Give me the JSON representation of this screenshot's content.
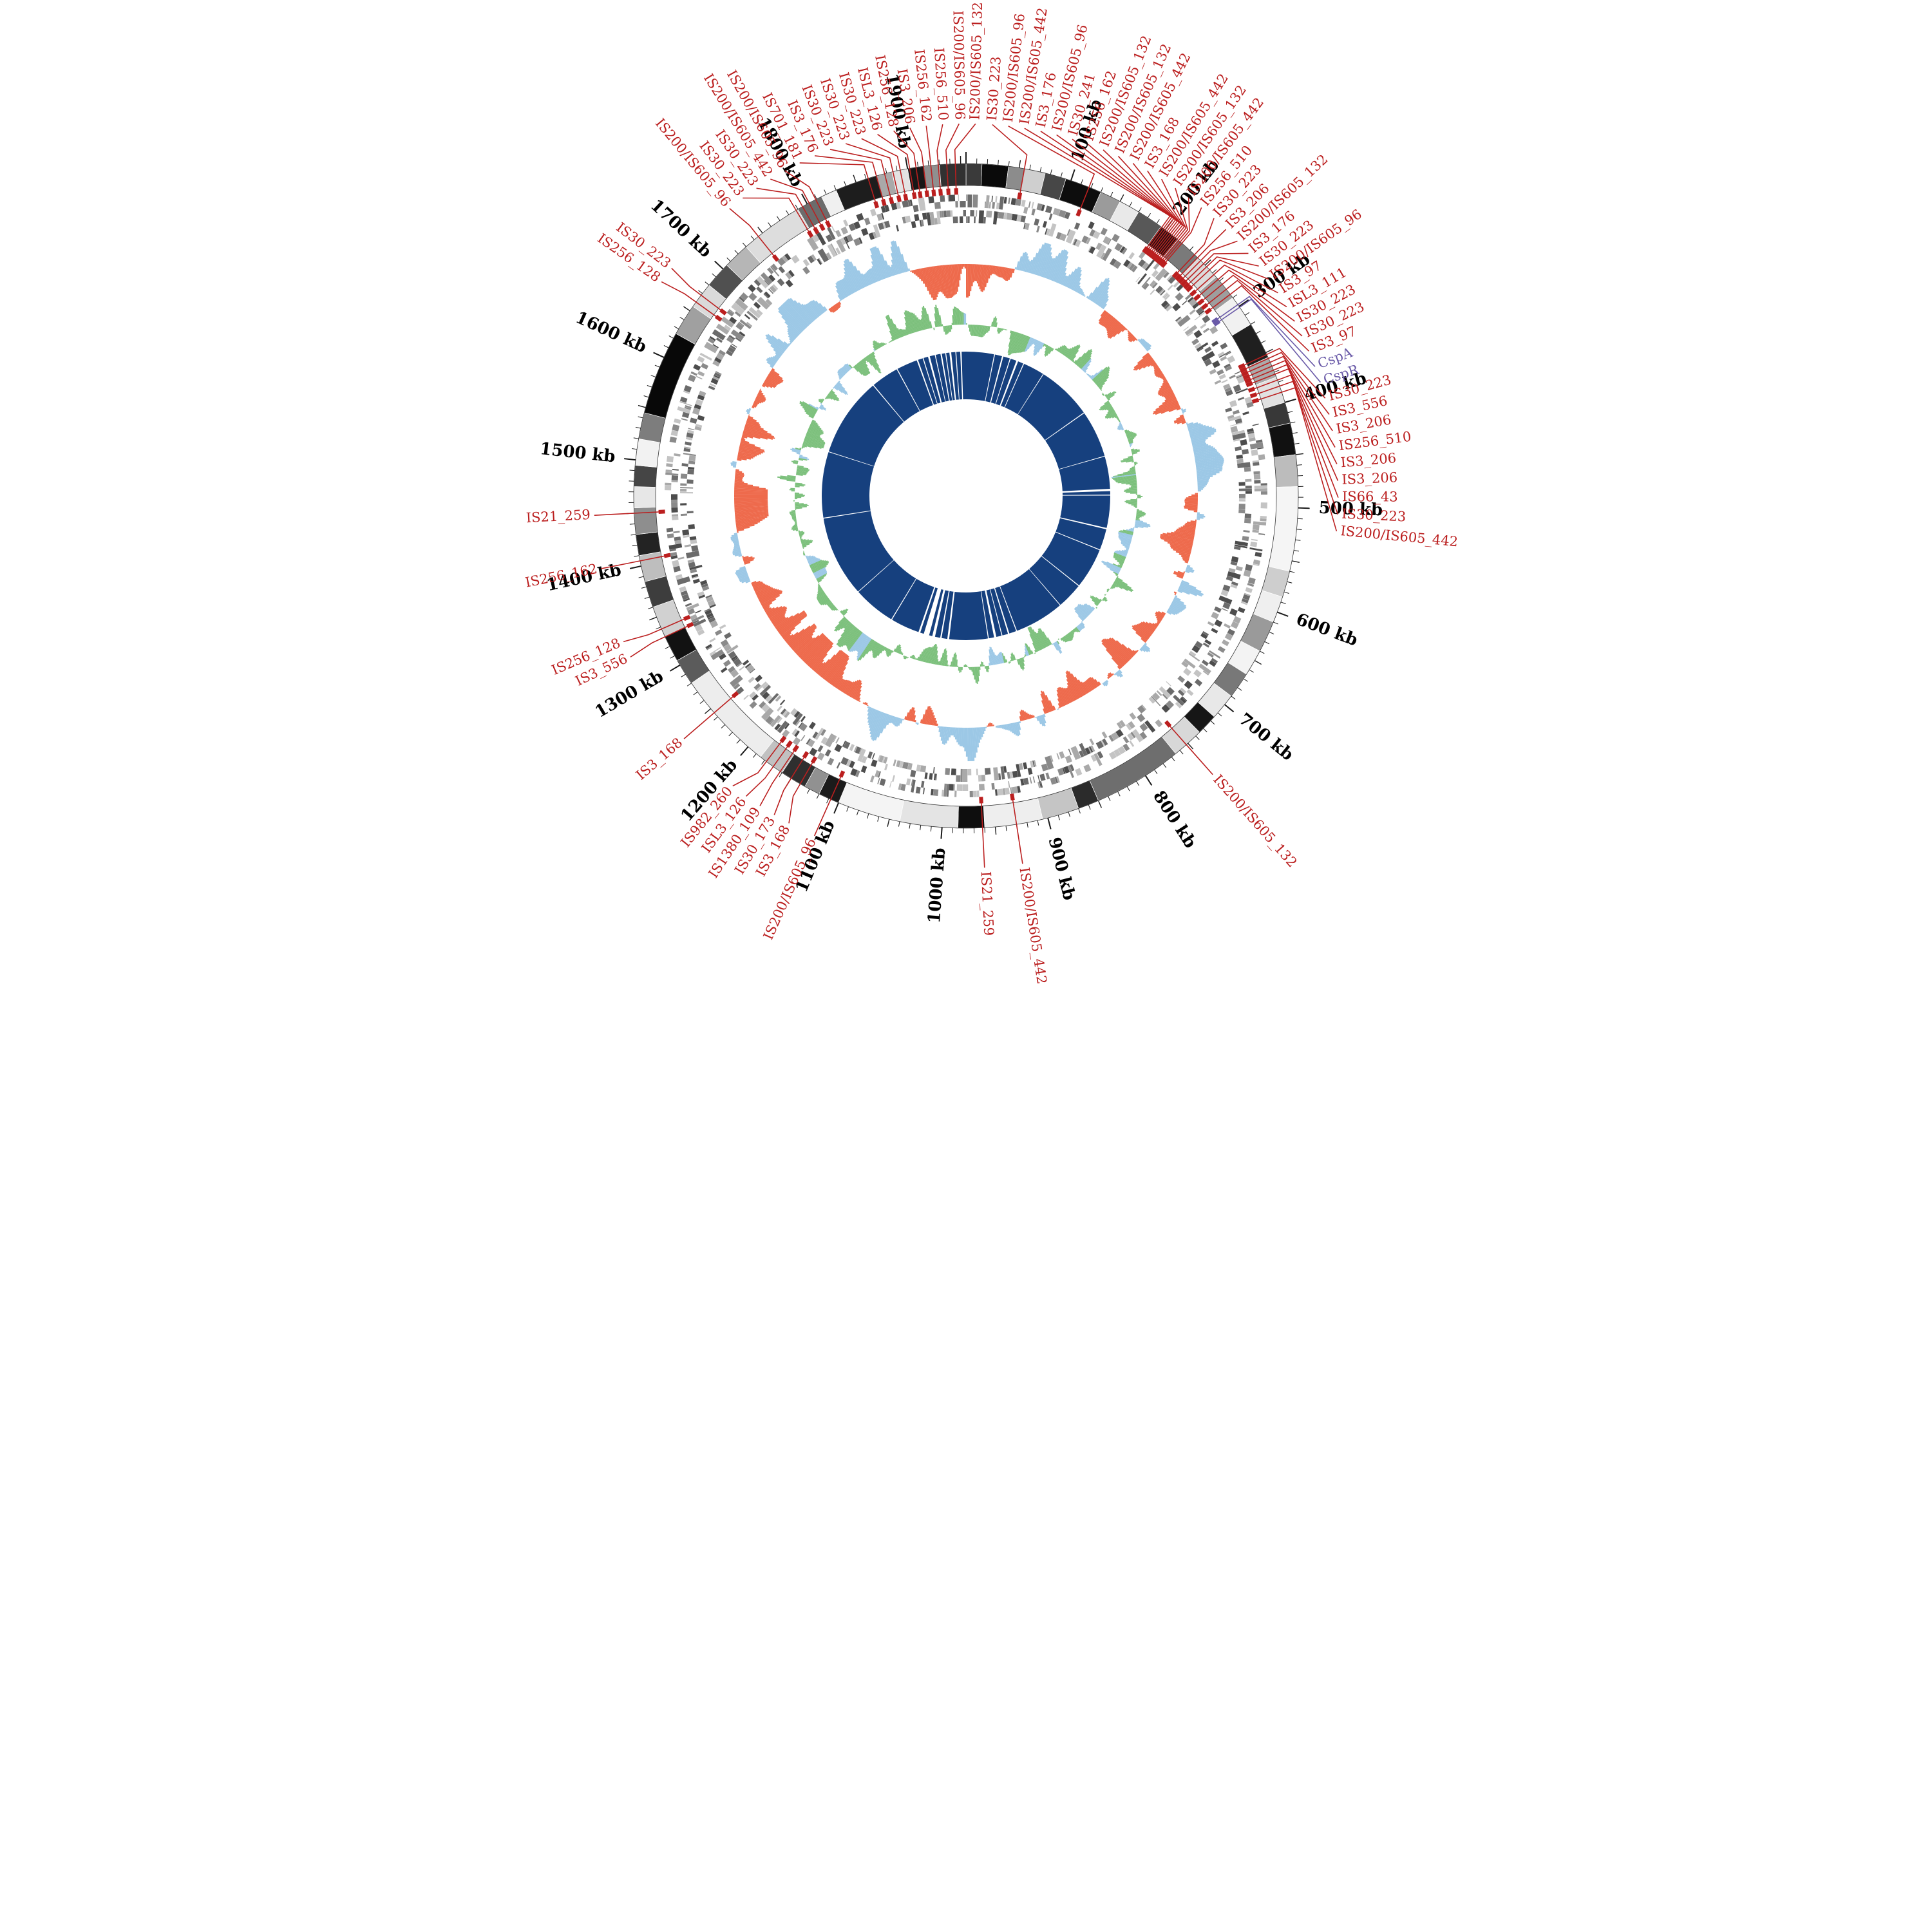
{
  "figure": {
    "background": "#ffffff",
    "description": "circular genome map with IS element annotations"
  },
  "chart_data": {
    "type": "circular-genome-map",
    "genome_length_kb": 1955,
    "scale": {
      "unit": "kb",
      "major_tick_kb": 100,
      "minor_tick_kb": 10,
      "tick_labels": [
        "100 kb",
        "200 kb",
        "300 kb",
        "400 kb",
        "500 kb",
        "600 kb",
        "700 kb",
        "800 kb",
        "900 kb",
        "1000 kb",
        "1100 kb",
        "1200 kb",
        "1300 kb",
        "1400 kb",
        "1500 kb",
        "1600 kb",
        "1700 kb",
        "1800 kb",
        "1900 kb"
      ]
    },
    "colors": {
      "is_label_red": "#bb1f1f",
      "gene_label_purple": "#6a5aa8",
      "navy_ring": "#16407e",
      "histogram_orange": "#ee6a4c",
      "histogram_blue": "#9cc8e6",
      "histogram_green": "#7cc07c",
      "tick_black": "#1a1a1a"
    },
    "tracks": [
      {
        "id": "scale_axis",
        "type": "axis",
        "r_out": 534
      },
      {
        "id": "grayscale_segments",
        "type": "karyotype",
        "r_in": 482,
        "r_out": 516
      },
      {
        "id": "red_position_marks",
        "type": "tick-marks",
        "r_in": 468,
        "r_out": 478
      },
      {
        "id": "gene_blocks_outer",
        "type": "blocks",
        "r_in": 448,
        "r_out": 468
      },
      {
        "id": "gene_blocks_inner",
        "type": "blocks",
        "r_in": 424,
        "r_out": 444
      },
      {
        "id": "orange_blue_histogram",
        "type": "radial-histogram",
        "baseline_r": 360,
        "amp": 52
      },
      {
        "id": "green_histogram",
        "type": "radial-histogram",
        "baseline_r": 266,
        "amp": 40
      },
      {
        "id": "navy_ring",
        "type": "ring",
        "r_in": 150,
        "r_out": 224
      }
    ],
    "karyotype_segments": [
      [
        0,
        15,
        "#3a3a3a"
      ],
      [
        15,
        40,
        "#0a0a0a"
      ],
      [
        40,
        55,
        "#8c8c8c"
      ],
      [
        55,
        75,
        "#cfcfcf"
      ],
      [
        75,
        95,
        "#474747"
      ],
      [
        95,
        130,
        "#0d0d0d"
      ],
      [
        130,
        150,
        "#9b9b9b"
      ],
      [
        150,
        170,
        "#e9e9e9"
      ],
      [
        170,
        195,
        "#585858"
      ],
      [
        195,
        215,
        "#141414"
      ],
      [
        215,
        240,
        "#7a7a7a"
      ],
      [
        240,
        265,
        "#dcdcdc"
      ],
      [
        265,
        290,
        "#9e9e9e"
      ],
      [
        290,
        320,
        "#f1f1f1"
      ],
      [
        320,
        355,
        "#1f1f1f"
      ],
      [
        355,
        375,
        "#ababab"
      ],
      [
        375,
        400,
        "#e1e1e1"
      ],
      [
        400,
        420,
        "#383838"
      ],
      [
        420,
        450,
        "#111111"
      ],
      [
        450,
        480,
        "#bcbcbc"
      ],
      [
        480,
        560,
        "#f5f5f5"
      ],
      [
        560,
        585,
        "#cecece"
      ],
      [
        585,
        610,
        "#efefef"
      ],
      [
        610,
        640,
        "#9a9a9a"
      ],
      [
        640,
        665,
        "#f3f3f3"
      ],
      [
        665,
        690,
        "#787878"
      ],
      [
        690,
        715,
        "#e8e8e8"
      ],
      [
        715,
        735,
        "#161616"
      ],
      [
        735,
        765,
        "#d8d8d8"
      ],
      [
        765,
        850,
        "#6e6e6e"
      ],
      [
        850,
        870,
        "#2b2b2b"
      ],
      [
        870,
        905,
        "#c5c5c5"
      ],
      [
        905,
        960,
        "#eeeeee"
      ],
      [
        960,
        985,
        "#0e0e0e"
      ],
      [
        985,
        1040,
        "#e4e4e4"
      ],
      [
        1040,
        1100,
        "#f4f4f4"
      ],
      [
        1100,
        1120,
        "#1b1b1b"
      ],
      [
        1120,
        1135,
        "#919191"
      ],
      [
        1135,
        1160,
        "#2f2f2f"
      ],
      [
        1160,
        1185,
        "#c1c1c1"
      ],
      [
        1185,
        1280,
        "#ededed"
      ],
      [
        1280,
        1305,
        "#5b5b5b"
      ],
      [
        1305,
        1330,
        "#121212"
      ],
      [
        1330,
        1360,
        "#d1d1d1"
      ],
      [
        1360,
        1385,
        "#3d3d3d"
      ],
      [
        1385,
        1410,
        "#bebebe"
      ],
      [
        1410,
        1430,
        "#232323"
      ],
      [
        1430,
        1455,
        "#8e8e8e"
      ],
      [
        1455,
        1475,
        "#e7e7e7"
      ],
      [
        1475,
        1495,
        "#454545"
      ],
      [
        1495,
        1520,
        "#f2f2f2"
      ],
      [
        1520,
        1545,
        "#7d7d7d"
      ],
      [
        1545,
        1625,
        "#080808"
      ],
      [
        1625,
        1655,
        "#a0a0a0"
      ],
      [
        1655,
        1680,
        "#dadada"
      ],
      [
        1680,
        1705,
        "#505050"
      ],
      [
        1705,
        1730,
        "#b6b6b6"
      ],
      [
        1730,
        1790,
        "#dddddd"
      ],
      [
        1790,
        1815,
        "#6c6c6c"
      ],
      [
        1815,
        1830,
        "#f0f0f0"
      ],
      [
        1830,
        1870,
        "#1d1d1d"
      ],
      [
        1870,
        1885,
        "#a9a9a9"
      ],
      [
        1885,
        1900,
        "#e3e3e3"
      ],
      [
        1900,
        1915,
        "#171717"
      ],
      [
        1915,
        1930,
        "#8f8f8f"
      ],
      [
        1930,
        1955,
        "#313131"
      ]
    ],
    "inner_ring_gaps": [
      [
        62,
        2
      ],
      [
        80,
        3
      ],
      [
        97,
        2
      ],
      [
        113,
        4
      ],
      [
        128,
        2
      ],
      [
        176,
        1.5
      ],
      [
        298,
        2
      ],
      [
        402,
        1.5
      ],
      [
        476,
        5
      ],
      [
        487,
        2
      ],
      [
        560,
        3
      ],
      [
        608,
        2
      ],
      [
        698,
        2
      ],
      [
        756,
        1.5
      ],
      [
        866,
        2
      ],
      [
        884,
        3
      ],
      [
        899,
        2
      ],
      [
        914,
        5
      ],
      [
        929,
        2
      ],
      [
        1016,
        4
      ],
      [
        1032,
        3
      ],
      [
        1048,
        6
      ],
      [
        1064,
        12
      ],
      [
        1080,
        4
      ],
      [
        1146,
        2
      ],
      [
        1240,
        1.5
      ],
      [
        1418,
        2
      ],
      [
        1563,
        1.5
      ],
      [
        1738,
        2
      ],
      [
        1800,
        2
      ],
      [
        1848,
        3
      ],
      [
        1861,
        2
      ],
      [
        1874,
        4
      ],
      [
        1888,
        2
      ],
      [
        1901,
        3
      ],
      [
        1911,
        2
      ],
      [
        1921,
        4
      ],
      [
        1933,
        2
      ],
      [
        1944,
        3
      ]
    ],
    "labels": [
      [
        55,
        "IS30_223",
        "is"
      ],
      [
        118,
        "IS200/IS605_96",
        "is"
      ],
      [
        196,
        "IS200/IS605_442",
        "is"
      ],
      [
        198,
        "IS3_176",
        "is"
      ],
      [
        200,
        "IS200/IS605_96",
        "is"
      ],
      [
        202,
        "IS30_241",
        "is"
      ],
      [
        204,
        "IS256_162",
        "is"
      ],
      [
        206,
        "IS200/IS605_132",
        "is"
      ],
      [
        208,
        "IS200/IS605_132",
        "is"
      ],
      [
        210,
        "IS200/IS605_442",
        "is"
      ],
      [
        212,
        "IS3_168",
        "is"
      ],
      [
        214,
        "IS200/IS605_442",
        "is"
      ],
      [
        216,
        "IS200/IS605_132",
        "is"
      ],
      [
        218,
        "IS200/IS605_442",
        "is"
      ],
      [
        220,
        "IS256_510",
        "is"
      ],
      [
        236,
        "IS30_223",
        "is"
      ],
      [
        240,
        "IS3_206",
        "is"
      ],
      [
        244,
        "IS200/IS605_132",
        "is"
      ],
      [
        248,
        "IS3_176",
        "is"
      ],
      [
        252,
        "IS30_223",
        "is"
      ],
      [
        256,
        "IS200/IS605_96",
        "is"
      ],
      [
        262,
        "IS3_97",
        "is"
      ],
      [
        268,
        "ISL3_111",
        "is"
      ],
      [
        274,
        "IS30_223",
        "is"
      ],
      [
        280,
        "IS30_223",
        "is"
      ],
      [
        286,
        "IS3_97",
        "is"
      ],
      [
        298,
        "CspA",
        "gene"
      ],
      [
        301,
        "CspR",
        "gene"
      ],
      [
        352,
        "IS30_223",
        "is"
      ],
      [
        356,
        "IS3_556",
        "is"
      ],
      [
        360,
        "IS3_206",
        "is"
      ],
      [
        364,
        "IS256_510",
        "is"
      ],
      [
        368,
        "IS3_206",
        "is"
      ],
      [
        372,
        "IS3_206",
        "is"
      ],
      [
        378,
        "IS66_43",
        "is"
      ],
      [
        384,
        "IS30_223",
        "is"
      ],
      [
        390,
        "IS200/IS605_442",
        "is"
      ],
      [
        752,
        "IS200/IS605_132",
        "is"
      ],
      [
        930,
        "IS200/IS605_442",
        "is"
      ],
      [
        962,
        "IS21_259",
        "is"
      ],
      [
        1108,
        "IS200/IS605_96",
        "is"
      ],
      [
        1140,
        "IS3_168",
        "is"
      ],
      [
        1150,
        "IS30_173",
        "is"
      ],
      [
        1162,
        "IS1380_109",
        "is"
      ],
      [
        1170,
        "ISL3_126",
        "is"
      ],
      [
        1178,
        "IS982_260",
        "is"
      ],
      [
        1245,
        "IS3_168",
        "is"
      ],
      [
        1330,
        "IS3_556",
        "is"
      ],
      [
        1338,
        "IS256_128",
        "is"
      ],
      [
        1405,
        "IS256_162",
        "is"
      ],
      [
        1450,
        "IS21_259",
        "is"
      ],
      [
        1660,
        "IS256_128",
        "is"
      ],
      [
        1668,
        "IS30_223",
        "is"
      ],
      [
        1745,
        "IS200/IS605_96",
        "is"
      ],
      [
        1788,
        "IS30_223",
        "is"
      ],
      [
        1795,
        "IS30_223",
        "is"
      ],
      [
        1802,
        "IS200/IS605_442",
        "is"
      ],
      [
        1809,
        "IS200/IS605_96",
        "is"
      ],
      [
        1862,
        "IS701_181",
        "is"
      ],
      [
        1870,
        "IS3_176",
        "is"
      ],
      [
        1878,
        "IS30_223",
        "is"
      ],
      [
        1886,
        "IS30_223",
        "is"
      ],
      [
        1893,
        "IS30_223",
        "is"
      ],
      [
        1902,
        "ISL3_126",
        "is"
      ],
      [
        1908,
        "IS256_128",
        "is"
      ],
      [
        1915,
        "IS3_206",
        "is"
      ],
      [
        1922,
        "IS256_162",
        "is"
      ],
      [
        1929,
        "IS256_510",
        "is"
      ],
      [
        1937,
        "IS200/IS605_96",
        "is"
      ],
      [
        1945,
        "IS200/IS605_132",
        "is"
      ]
    ]
  }
}
